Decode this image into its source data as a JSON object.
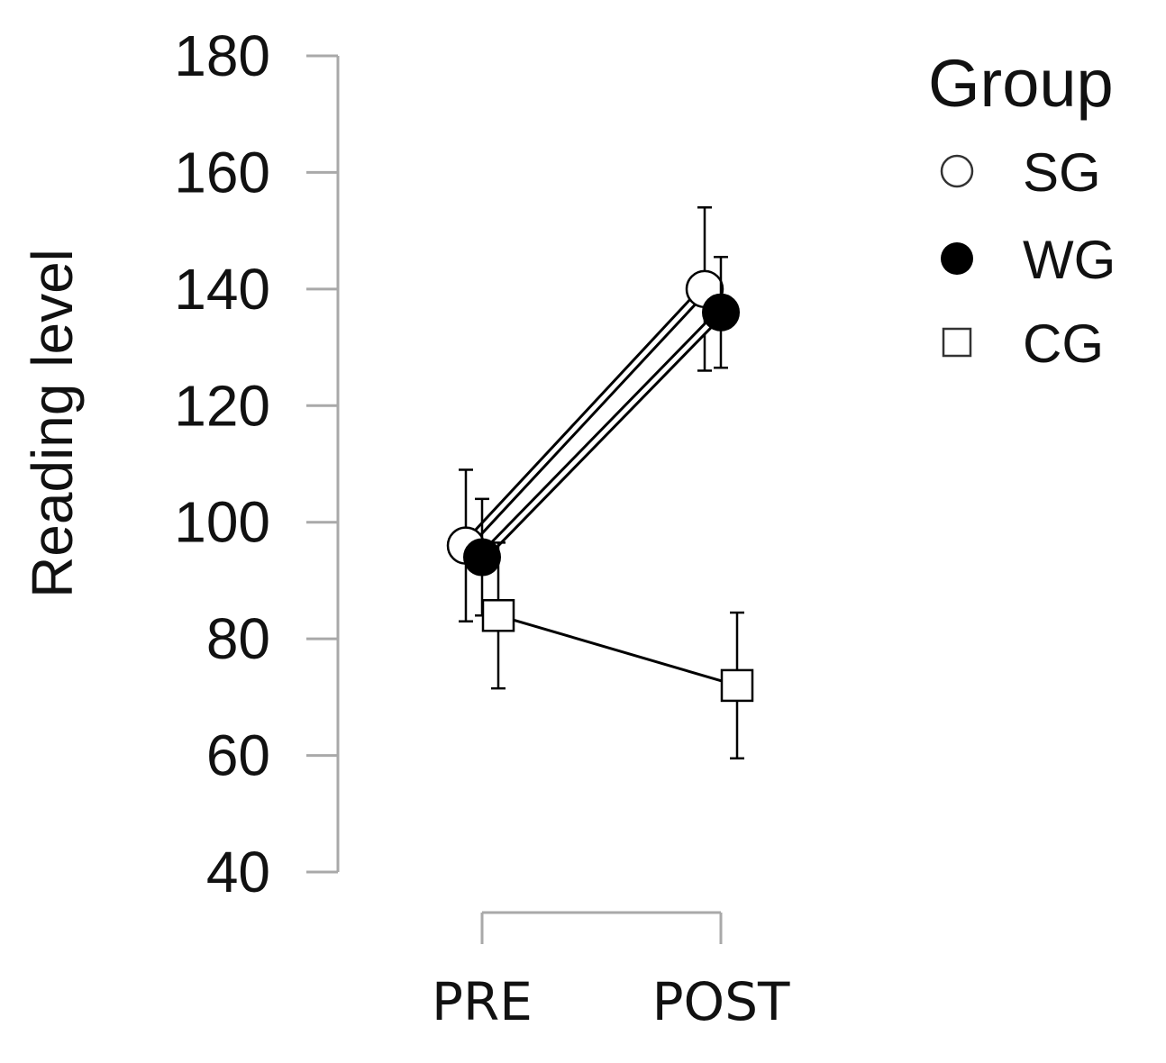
{
  "chart_data": {
    "type": "line",
    "ylabel": "Reading level",
    "xlabel": "",
    "ylim": [
      40,
      180
    ],
    "yticks": [
      180,
      160,
      140,
      120,
      100,
      80,
      60,
      40
    ],
    "categories": [
      "PRE",
      "POST"
    ],
    "legend": {
      "title": "Group",
      "placement": "top-right"
    },
    "grid": false,
    "series": [
      {
        "name": "SG",
        "marker": "open-circle",
        "values": [
          96,
          140
        ],
        "error": [
          13,
          14
        ],
        "color": "#000000"
      },
      {
        "name": "WG",
        "marker": "filled-circle",
        "values": [
          94,
          136
        ],
        "error": [
          10,
          9.5
        ],
        "color": "#000000"
      },
      {
        "name": "CG",
        "marker": "open-square",
        "values": [
          84,
          72
        ],
        "error": [
          12.5,
          12.5
        ],
        "color": "#000000"
      }
    ]
  }
}
